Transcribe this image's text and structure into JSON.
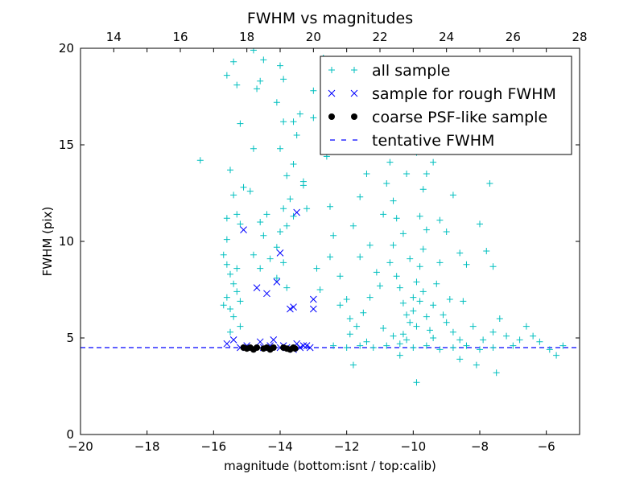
{
  "chart_data": {
    "type": "scatter",
    "title": "FWHM vs magnitudes",
    "xlabel": "magnitude (bottom:isnt / top:calib)",
    "ylabel": "FWHM (pix)",
    "xlim": [
      -20,
      -5
    ],
    "ylim": [
      0,
      20
    ],
    "top_xlim": [
      13,
      28
    ],
    "xticks": [
      -20,
      -18,
      -16,
      -14,
      -12,
      -10,
      -8,
      -6
    ],
    "xtick_labels": [
      "−20",
      "−18",
      "−16",
      "−14",
      "−12",
      "−10",
      "−8",
      "−6"
    ],
    "top_xticks": [
      14,
      16,
      18,
      20,
      22,
      24,
      26,
      28
    ],
    "top_xtick_labels": [
      "14",
      "16",
      "18",
      "20",
      "22",
      "24",
      "26",
      "28"
    ],
    "yticks": [
      0,
      5,
      10,
      15,
      20
    ],
    "ytick_labels": [
      "0",
      "5",
      "10",
      "15",
      "20"
    ],
    "legend_position": "top-right",
    "tentative_fwhm": 4.5,
    "series": [
      {
        "name": "all sample",
        "marker": "plus",
        "color": "#00bfbf",
        "points": [
          [
            -16.4,
            14.2
          ],
          [
            -15.6,
            18.6
          ],
          [
            -15.4,
            19.3
          ],
          [
            -15.3,
            18.1
          ],
          [
            -15.2,
            16.1
          ],
          [
            -15.5,
            13.7
          ],
          [
            -15.4,
            12.4
          ],
          [
            -15.6,
            11.2
          ],
          [
            -15.3,
            11.4
          ],
          [
            -15.2,
            10.9
          ],
          [
            -15.6,
            10.1
          ],
          [
            -15.7,
            9.3
          ],
          [
            -15.6,
            8.8
          ],
          [
            -15.5,
            8.3
          ],
          [
            -15.4,
            7.8
          ],
          [
            -15.3,
            7.4
          ],
          [
            -15.6,
            7.1
          ],
          [
            -15.5,
            6.5
          ],
          [
            -15.4,
            6.1
          ],
          [
            -15.2,
            5.6
          ],
          [
            -15.5,
            5.3
          ],
          [
            -15.7,
            6.7
          ],
          [
            -15.3,
            8.6
          ],
          [
            -15.2,
            6.9
          ],
          [
            -15.1,
            12.8
          ],
          [
            -14.9,
            12.6
          ],
          [
            -14.8,
            14.8
          ],
          [
            -14.7,
            17.9
          ],
          [
            -14.6,
            18.3
          ],
          [
            -14.5,
            19.4
          ],
          [
            -14.8,
            19.9
          ],
          [
            -14.6,
            11.0
          ],
          [
            -14.5,
            10.3
          ],
          [
            -14.8,
            9.3
          ],
          [
            -14.6,
            8.6
          ],
          [
            -14.3,
            9.1
          ],
          [
            -14.4,
            11.4
          ],
          [
            -14.1,
            17.2
          ],
          [
            -14.0,
            14.8
          ],
          [
            -13.9,
            16.2
          ],
          [
            -13.9,
            18.4
          ],
          [
            -14.0,
            19.1
          ],
          [
            -13.8,
            13.4
          ],
          [
            -13.6,
            14.0
          ],
          [
            -13.5,
            15.5
          ],
          [
            -13.6,
            16.2
          ],
          [
            -13.4,
            16.6
          ],
          [
            -13.7,
            12.2
          ],
          [
            -13.9,
            11.7
          ],
          [
            -14.0,
            10.5
          ],
          [
            -13.8,
            10.8
          ],
          [
            -13.6,
            11.3
          ],
          [
            -14.1,
            9.7
          ],
          [
            -13.9,
            8.9
          ],
          [
            -14.1,
            8.1
          ],
          [
            -13.8,
            7.6
          ],
          [
            -13.3,
            13.1
          ],
          [
            -13.3,
            12.9
          ],
          [
            -13.2,
            11.7
          ],
          [
            -13.0,
            17.8
          ],
          [
            -13.0,
            16.4
          ],
          [
            -12.7,
            19.5
          ],
          [
            -12.6,
            14.4
          ],
          [
            -12.5,
            11.8
          ],
          [
            -12.4,
            10.3
          ],
          [
            -12.5,
            9.2
          ],
          [
            -12.2,
            8.2
          ],
          [
            -12.9,
            8.6
          ],
          [
            -12.8,
            7.5
          ],
          [
            -12.2,
            6.7
          ],
          [
            -12.0,
            7.0
          ],
          [
            -11.9,
            6.0
          ],
          [
            -11.8,
            10.8
          ],
          [
            -11.6,
            12.3
          ],
          [
            -11.4,
            13.5
          ],
          [
            -11.2,
            14.8
          ],
          [
            -11.0,
            15.0
          ],
          [
            -11.6,
            9.2
          ],
          [
            -11.3,
            9.8
          ],
          [
            -11.1,
            8.4
          ],
          [
            -11.0,
            7.7
          ],
          [
            -10.9,
            11.4
          ],
          [
            -10.8,
            13.0
          ],
          [
            -10.7,
            14.1
          ],
          [
            -10.6,
            12.1
          ],
          [
            -10.5,
            11.2
          ],
          [
            -10.6,
            9.8
          ],
          [
            -10.7,
            8.9
          ],
          [
            -10.5,
            8.2
          ],
          [
            -10.4,
            7.6
          ],
          [
            -10.3,
            6.8
          ],
          [
            -10.2,
            6.2
          ],
          [
            -10.1,
            5.8
          ],
          [
            -10.0,
            7.1
          ],
          [
            -9.9,
            7.9
          ],
          [
            -9.8,
            8.7
          ],
          [
            -9.7,
            9.6
          ],
          [
            -9.6,
            10.6
          ],
          [
            -9.8,
            11.3
          ],
          [
            -9.7,
            12.7
          ],
          [
            -9.6,
            13.5
          ],
          [
            -9.4,
            14.1
          ],
          [
            -9.9,
            14.6
          ],
          [
            -10.2,
            13.5
          ],
          [
            -10.3,
            10.4
          ],
          [
            -10.1,
            9.1
          ],
          [
            -10.0,
            6.4
          ],
          [
            -9.9,
            5.6
          ],
          [
            -9.8,
            6.9
          ],
          [
            -9.7,
            7.4
          ],
          [
            -9.6,
            6.1
          ],
          [
            -9.5,
            5.4
          ],
          [
            -9.4,
            6.7
          ],
          [
            -9.3,
            7.8
          ],
          [
            -9.2,
            8.9
          ],
          [
            -9.1,
            6.2
          ],
          [
            -9.0,
            5.8
          ],
          [
            -8.9,
            7.0
          ],
          [
            -8.8,
            5.3
          ],
          [
            -9.2,
            11.1
          ],
          [
            -9.0,
            10.5
          ],
          [
            -8.8,
            12.4
          ],
          [
            -8.6,
            9.4
          ],
          [
            -8.5,
            6.9
          ],
          [
            -8.4,
            8.8
          ],
          [
            -8.2,
            5.6
          ],
          [
            -8.0,
            10.9
          ],
          [
            -7.9,
            4.9
          ],
          [
            -7.8,
            9.5
          ],
          [
            -7.7,
            13.0
          ],
          [
            -7.6,
            8.7
          ],
          [
            -7.6,
            5.3
          ],
          [
            -7.4,
            6.0
          ],
          [
            -7.2,
            5.1
          ],
          [
            -7.0,
            4.6
          ],
          [
            -6.8,
            4.9
          ],
          [
            -6.6,
            5.6
          ],
          [
            -6.4,
            5.1
          ],
          [
            -6.2,
            4.8
          ],
          [
            -5.9,
            4.4
          ],
          [
            -5.7,
            4.1
          ],
          [
            -5.5,
            4.6
          ],
          [
            -7.5,
            3.2
          ],
          [
            -8.1,
            3.6
          ],
          [
            -8.6,
            3.9
          ],
          [
            -9.9,
            2.7
          ],
          [
            -11.8,
            3.6
          ],
          [
            -10.4,
            4.1
          ],
          [
            -12.4,
            4.6
          ],
          [
            -12.0,
            4.5
          ],
          [
            -11.6,
            4.6
          ],
          [
            -11.2,
            4.5
          ],
          [
            -10.8,
            4.6
          ],
          [
            -10.4,
            4.7
          ],
          [
            -10.0,
            4.5
          ],
          [
            -9.6,
            4.6
          ],
          [
            -9.2,
            4.4
          ],
          [
            -8.8,
            4.5
          ],
          [
            -8.4,
            4.6
          ],
          [
            -8.0,
            4.4
          ],
          [
            -7.6,
            4.5
          ],
          [
            -11.4,
            4.8
          ],
          [
            -10.6,
            5.1
          ],
          [
            -10.2,
            4.9
          ],
          [
            -9.4,
            5.0
          ],
          [
            -8.6,
            4.9
          ],
          [
            -11.9,
            5.2
          ],
          [
            -11.7,
            5.6
          ],
          [
            -11.5,
            6.3
          ],
          [
            -11.3,
            7.1
          ],
          [
            -10.9,
            5.5
          ],
          [
            -10.3,
            5.2
          ]
        ]
      },
      {
        "name": "sample for rough FWHM",
        "marker": "x",
        "color": "#0000ff",
        "points": [
          [
            -15.6,
            4.7
          ],
          [
            -15.4,
            4.9
          ],
          [
            -15.1,
            10.6
          ],
          [
            -15.0,
            4.6
          ],
          [
            -14.7,
            7.6
          ],
          [
            -14.6,
            4.8
          ],
          [
            -14.4,
            7.3
          ],
          [
            -14.2,
            4.9
          ],
          [
            -14.1,
            7.9
          ],
          [
            -14.0,
            9.4
          ],
          [
            -13.9,
            4.6
          ],
          [
            -13.7,
            6.5
          ],
          [
            -13.6,
            6.6
          ],
          [
            -13.5,
            11.5
          ],
          [
            -13.5,
            4.7
          ],
          [
            -13.3,
            4.6
          ],
          [
            -13.1,
            4.5
          ],
          [
            -13.0,
            7.0
          ],
          [
            -13.0,
            6.5
          ],
          [
            -14.5,
            4.5
          ],
          [
            -14.0,
            4.5
          ],
          [
            -13.8,
            4.5
          ],
          [
            -13.4,
            4.5
          ],
          [
            -13.2,
            4.6
          ],
          [
            -15.2,
            4.5
          ],
          [
            -14.3,
            4.6
          ],
          [
            -13.6,
            4.4
          ]
        ]
      },
      {
        "name": "coarse PSF-like sample",
        "marker": "circle",
        "color": "#000000",
        "points": [
          [
            -15.1,
            4.5
          ],
          [
            -15.0,
            4.45
          ],
          [
            -14.9,
            4.5
          ],
          [
            -14.8,
            4.4
          ],
          [
            -14.7,
            4.5
          ],
          [
            -14.5,
            4.45
          ],
          [
            -14.4,
            4.5
          ],
          [
            -14.3,
            4.4
          ],
          [
            -14.2,
            4.5
          ],
          [
            -13.9,
            4.5
          ],
          [
            -13.8,
            4.45
          ],
          [
            -13.7,
            4.4
          ],
          [
            -13.6,
            4.5
          ],
          [
            -13.55,
            4.45
          ]
        ]
      }
    ]
  }
}
